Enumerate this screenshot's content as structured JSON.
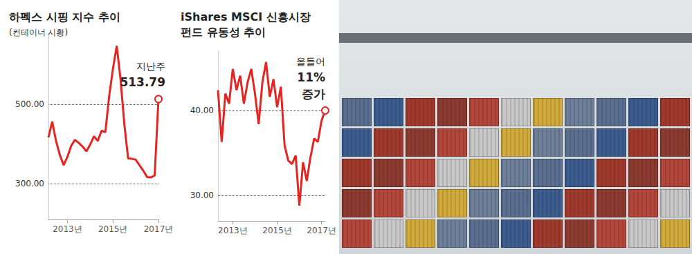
{
  "chart_data": [
    {
      "type": "line",
      "title": "하펙스 시핑 지수 추이",
      "subtitle": "(컨테이너 시황)",
      "categories": [
        null,
        null,
        null,
        null,
        null,
        "2013년",
        null,
        null,
        null,
        null,
        null,
        null,
        null,
        null,
        null,
        null,
        null,
        "2015년",
        null,
        null,
        null,
        null,
        null,
        null,
        null,
        null,
        null,
        null,
        null,
        "2017년"
      ],
      "values": [
        417,
        457,
        408,
        373,
        347,
        368,
        396,
        411,
        403,
        394,
        382,
        399,
        420,
        408,
        434,
        430,
        521,
        590,
        648,
        564,
        451,
        364,
        363,
        361,
        347,
        333,
        317,
        316,
        321,
        513.79
      ],
      "color": "#e52521",
      "ylim": [
        210,
        680
      ],
      "yticks": [
        {
          "value": 300,
          "label": "300.00"
        },
        {
          "value": 500,
          "label": "500.00"
        }
      ],
      "grid": true,
      "annotations": [
        "지난주",
        "513.79"
      ]
    },
    {
      "type": "line",
      "title": "iShares MSCI 신흥시장\n펀드 유동성 추이",
      "categories": [
        null,
        null,
        null,
        null,
        "2013년",
        null,
        null,
        null,
        null,
        null,
        null,
        null,
        null,
        null,
        null,
        null,
        "2015년",
        null,
        null,
        null,
        null,
        null,
        null,
        null,
        null,
        null,
        null,
        null,
        "2017년",
        null
      ],
      "values": [
        42.4,
        36.3,
        42.0,
        40.8,
        44.9,
        42.4,
        44.1,
        40.8,
        43.3,
        44.9,
        42.0,
        38.4,
        43.3,
        45.7,
        41.6,
        43.7,
        40.4,
        42.8,
        35.9,
        34.1,
        33.7,
        34.7,
        28.8,
        33.9,
        31.7,
        34.5,
        36.7,
        36.3,
        38.8,
        40.0
      ],
      "color": "#e52521",
      "ylim": [
        27,
        47
      ],
      "yticks": [
        {
          "value": 30,
          "label": "30.00"
        },
        {
          "value": 40,
          "label": "40.00"
        }
      ],
      "grid": true,
      "annotations": [
        "올들어",
        "11%",
        "증가"
      ]
    }
  ]
}
